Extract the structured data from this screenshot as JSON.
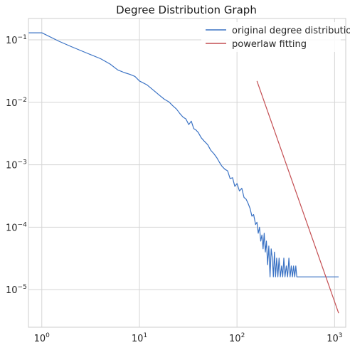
{
  "chart_data": {
    "type": "line",
    "title": "Degree Distribution Graph",
    "xlabel": "",
    "ylabel": "",
    "xscale": "log",
    "yscale": "log",
    "xlim": [
      0.73,
      1300
    ],
    "ylim": [
      2.5e-06,
      0.22
    ],
    "grid": true,
    "legend_position": "top-right",
    "x_ticks": [
      {
        "value": 1,
        "base": "10",
        "exp": "0"
      },
      {
        "value": 10,
        "base": "10",
        "exp": "1"
      },
      {
        "value": 100,
        "base": "10",
        "exp": "2"
      },
      {
        "value": 1000,
        "base": "10",
        "exp": "3"
      }
    ],
    "y_ticks": [
      {
        "value": 1e-05,
        "base": "10",
        "exp": "−5"
      },
      {
        "value": 0.0001,
        "base": "10",
        "exp": "−4"
      },
      {
        "value": 0.001,
        "base": "10",
        "exp": "−3"
      },
      {
        "value": 0.01,
        "base": "10",
        "exp": "−2"
      },
      {
        "value": 0.1,
        "base": "10",
        "exp": "−1"
      }
    ],
    "series": [
      {
        "name": "original degree distribution",
        "color": "#3a72c4",
        "x": [
          0.73,
          1,
          1.5,
          2,
          3,
          4,
          5,
          6,
          7,
          8,
          9,
          10,
          12,
          14,
          16,
          18,
          20,
          22,
          24,
          26,
          28,
          30,
          32,
          34,
          36,
          38,
          40,
          43,
          46,
          50,
          54,
          58,
          62,
          66,
          70,
          75,
          80,
          85,
          90,
          95,
          100,
          106,
          112,
          118,
          124,
          130,
          136,
          142,
          148,
          155,
          160,
          165,
          170,
          175,
          180,
          185,
          190,
          195,
          200,
          206,
          212,
          218,
          224,
          230,
          236,
          242,
          248,
          255,
          262,
          270,
          278,
          286,
          294,
          302,
          310,
          320,
          330,
          340,
          350,
          360,
          370,
          380,
          390,
          400,
          410,
          420,
          600,
          800,
          1000,
          1100
        ],
        "y": [
          0.13,
          0.13,
          0.095,
          0.078,
          0.06,
          0.05,
          0.041,
          0.033,
          0.03,
          0.028,
          0.026,
          0.022,
          0.019,
          0.0155,
          0.013,
          0.0112,
          0.0102,
          0.0088,
          0.0078,
          0.0066,
          0.0058,
          0.0054,
          0.0044,
          0.005,
          0.0038,
          0.0036,
          0.0033,
          0.0027,
          0.0024,
          0.0021,
          0.0017,
          0.0015,
          0.0013,
          0.0011,
          0.00095,
          0.00085,
          0.0008,
          0.0006,
          0.00062,
          0.00045,
          0.0005,
          0.00038,
          0.00042,
          0.0003,
          0.00028,
          0.00024,
          0.0002,
          0.00015,
          0.00016,
          0.00011,
          0.00012,
          8e-05,
          0.0001,
          6e-05,
          7.5e-05,
          4.5e-05,
          8e-05,
          4e-05,
          6e-05,
          2.5e-05,
          5e-05,
          1.6e-05,
          4.5e-05,
          3.2e-05,
          1.6e-05,
          4e-05,
          1.6e-05,
          3.2e-05,
          1.6e-05,
          3.2e-05,
          1.6e-05,
          2.4e-05,
          1.6e-05,
          3.2e-05,
          1.6e-05,
          2.4e-05,
          1.6e-05,
          3.2e-05,
          1.6e-05,
          2.4e-05,
          1.6e-05,
          2.4e-05,
          1.6e-05,
          2.4e-05,
          1.6e-05,
          1.6e-05,
          1.6e-05,
          1.6e-05,
          1.6e-05,
          1.6e-05
        ]
      },
      {
        "name": "powerlaw fitting",
        "color": "#c44e52",
        "x": [
          160,
          1100
        ],
        "y": [
          0.022,
          4.2e-06
        ]
      }
    ]
  }
}
